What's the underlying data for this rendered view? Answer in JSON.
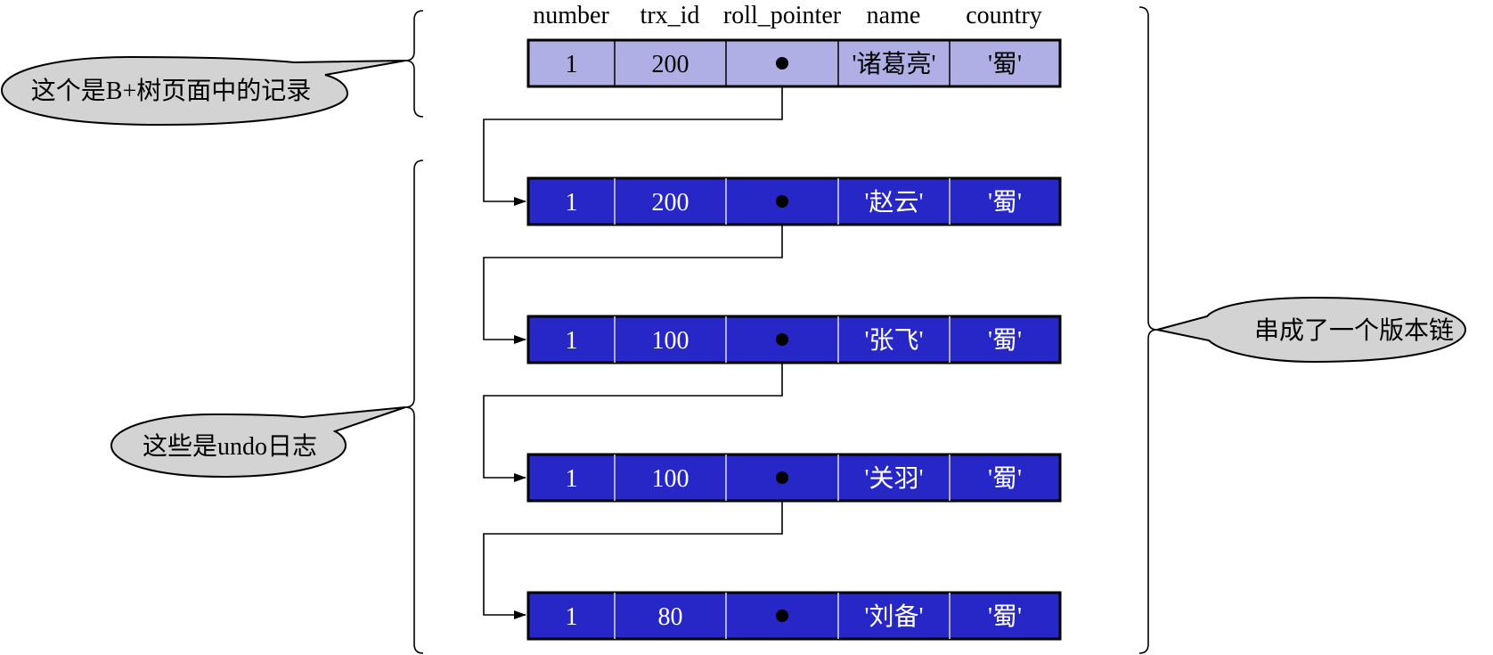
{
  "header": {
    "columns": [
      "number",
      "trx_id",
      "roll_pointer",
      "name",
      "country"
    ]
  },
  "colors": {
    "record_fill": "#AFAFE6",
    "undo_fill": "#2727C7",
    "callout_fill": "#D3D3D3",
    "line": "#000000"
  },
  "records": [
    {
      "kind": "btree",
      "number": "1",
      "trx_id": "200",
      "name": "'诸葛亮'",
      "country": "'蜀'"
    },
    {
      "kind": "undo",
      "number": "1",
      "trx_id": "200",
      "name": "'赵云'",
      "country": "'蜀'"
    },
    {
      "kind": "undo",
      "number": "1",
      "trx_id": "100",
      "name": "'张飞'",
      "country": "'蜀'"
    },
    {
      "kind": "undo",
      "number": "1",
      "trx_id": "100",
      "name": "'关羽'",
      "country": "'蜀'"
    },
    {
      "kind": "undo",
      "number": "1",
      "trx_id": "80",
      "name": "'刘备'",
      "country": "'蜀'"
    }
  ],
  "callouts": {
    "btree": "这个是B+树页面中的记录",
    "undo": "这些是undo日志",
    "chain": "串成了一个版本链"
  }
}
